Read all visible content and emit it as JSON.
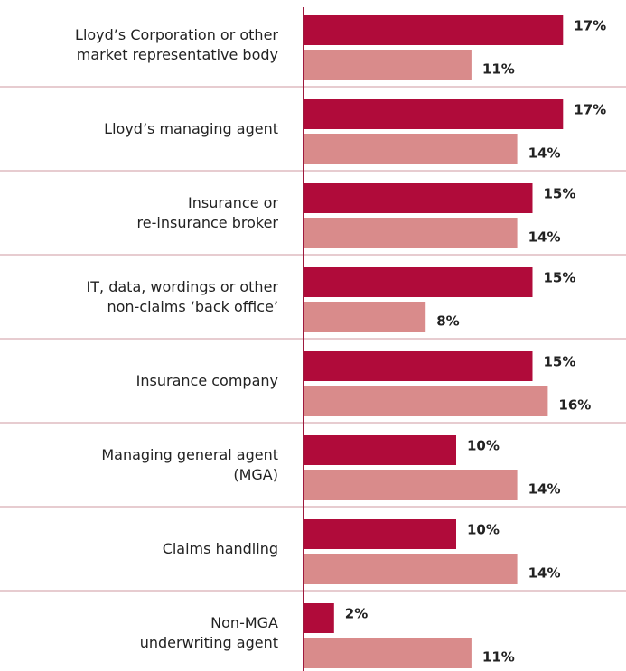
{
  "chart_data": {
    "type": "bar",
    "orientation": "horizontal",
    "categories": [
      "Lloyd’s Corporation or other\nmarket representative body",
      "Lloyd’s managing agent",
      "Insurance or\nre-insurance broker",
      "IT, data, wordings or other\nnon-claims ‘back office’",
      "Insurance company",
      "Managing general agent\n(MGA)",
      "Claims handling",
      "Non-MGA\nunderwriting agent"
    ],
    "series": [
      {
        "color": "#b00b3a",
        "values": [
          17,
          17,
          15,
          15,
          15,
          10,
          10,
          2
        ],
        "value_labels": [
          "17%",
          "17%",
          "15%",
          "15%",
          "15%",
          "10%",
          "10%",
          "2%"
        ]
      },
      {
        "color": "#d98b8b",
        "values": [
          11,
          14,
          14,
          8,
          16,
          14,
          14,
          11
        ],
        "value_labels": [
          "11%",
          "14%",
          "14%",
          "8%",
          "16%",
          "14%",
          "14%",
          "11%"
        ]
      }
    ]
  }
}
